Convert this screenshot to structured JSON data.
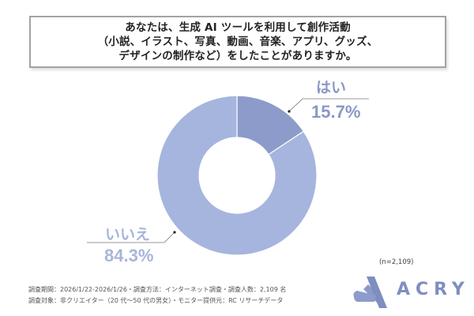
{
  "title": {
    "lines": [
      "あなたは、生成 AI ツールを利用して創作活動",
      "（小説、イラスト、写真、動画、音楽、アプリ、グッズ、",
      "デザインの制作など）をしたことがありますか。"
    ]
  },
  "chart_data": {
    "type": "pie",
    "variant": "donut",
    "title": "あなたは、生成 AI ツールを利用して創作活動（小説、イラスト、写真、動画、音楽、アプリ、グッズ、デザインの制作など）をしたことがありますか。",
    "categories": [
      "はい",
      "いいえ"
    ],
    "values": [
      15.7,
      84.3
    ],
    "unit": "%",
    "colors": [
      "#8c9bc9",
      "#a6b5dd"
    ],
    "labels": [
      {
        "name": "はい",
        "value": "15.7%"
      },
      {
        "name": "いいえ",
        "value": "84.3%"
      }
    ],
    "sample_size": "(n=2,109)",
    "legend": "none (callout labels)"
  },
  "labels": {
    "yes_name": "はい",
    "yes_pct": "15.7%",
    "no_name": "いいえ",
    "no_pct": "84.3%"
  },
  "sample_size": "(n=2,109)",
  "footer": {
    "line1": "調査期間：2026/1/22-2026/1/26・調査方法：インターネット調査・調査人数：2,109 名",
    "line2": "調査対象：非クリエイター（20 代～50 代の男女）・モニター提供元：RC リサーチデータ"
  },
  "logo": {
    "text": "ACRY",
    "color": "#7f8ec0"
  }
}
